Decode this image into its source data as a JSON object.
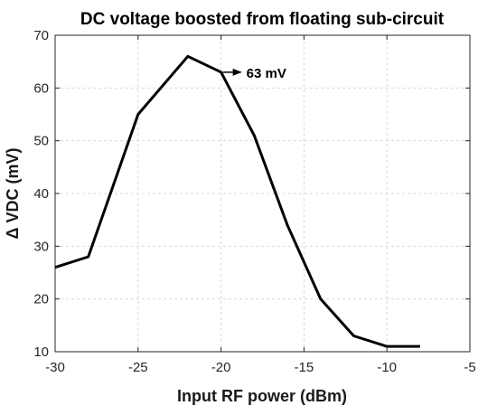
{
  "chart_data": {
    "type": "line",
    "title": "DC voltage boosted from floating sub-circuit",
    "xlabel": "Input RF power (dBm)",
    "ylabel": "Δ VDC (mV)",
    "xlim": [
      -30,
      -5
    ],
    "ylim": [
      10,
      70
    ],
    "xticks": [
      -30,
      -25,
      -20,
      -15,
      -10,
      -5
    ],
    "yticks": [
      10,
      20,
      30,
      40,
      50,
      60,
      70
    ],
    "grid": true,
    "series": [
      {
        "color": "#000000",
        "x": [
          -30,
          -28,
          -25,
          -22,
          -20,
          -18,
          -16,
          -14,
          -12,
          -10,
          -8
        ],
        "y": [
          26,
          28,
          55,
          66,
          63,
          51,
          34,
          20,
          13,
          11,
          11
        ]
      }
    ],
    "annotations": [
      {
        "text": "63 mV",
        "x": -20,
        "y": 63,
        "arrow_to_x": -18.8,
        "arrow_to_y": 63
      }
    ]
  }
}
